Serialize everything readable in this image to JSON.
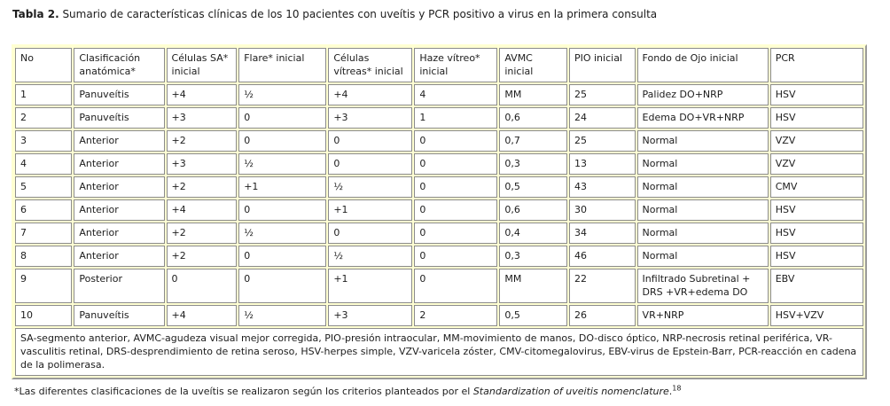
{
  "caption": {
    "label": "Tabla 2.",
    "text": " Sumario de características clínicas de los 10 pacientes con uveítis y PCR positivo a virus en la primera consulta"
  },
  "table": {
    "headers": [
      "No",
      "Clasificación anatómica*",
      "Células SA* inicial",
      "Flare* inicial",
      "Células vítreas* inicial",
      "Haze vítreo* inicial",
      "AVMC inicial",
      "PIO inicial",
      "Fondo de Ojo inicial",
      "PCR"
    ],
    "rows": [
      [
        "1",
        "Panuveítis",
        "+4",
        "½",
        "+4",
        "4",
        "MM",
        "25",
        "Palidez DO+NRP",
        "HSV"
      ],
      [
        "2",
        "Panuveítis",
        "+3",
        "0",
        "+3",
        "1",
        "0,6",
        "24",
        "Edema DO+VR+NRP",
        "HSV"
      ],
      [
        "3",
        "Anterior",
        "+2",
        "0",
        "0",
        "0",
        "0,7",
        "25",
        "Normal",
        "VZV"
      ],
      [
        "4",
        "Anterior",
        "+3",
        "½",
        "0",
        "0",
        "0,3",
        "13",
        "Normal",
        "VZV"
      ],
      [
        "5",
        "Anterior",
        "+2",
        "+1",
        "½",
        "0",
        "0,5",
        "43",
        "Normal",
        "CMV"
      ],
      [
        "6",
        "Anterior",
        "+4",
        "0",
        "+1",
        "0",
        "0,6",
        "30",
        "Normal",
        "HSV"
      ],
      [
        "7",
        "Anterior",
        "+2",
        "½",
        "0",
        "0",
        "0,4",
        "34",
        "Normal",
        "HSV"
      ],
      [
        "8",
        "Anterior",
        "+2",
        "0",
        "½",
        "0",
        "0,3",
        "46",
        "Normal",
        "HSV"
      ],
      [
        "9",
        "Posterior",
        "0",
        "0",
        "+1",
        "0",
        "MM",
        "22",
        "Infiltrado Subretinal + DRS +VR+edema DO",
        "EBV"
      ],
      [
        "10",
        "Panuveítis",
        "+4",
        "½",
        "+3",
        "2",
        "0,5",
        "26",
        "VR+NRP",
        "HSV+VZV"
      ]
    ],
    "footnote": "SA-segmento anterior, AVMC-agudeza visual mejor corregida, PIO-presión intraocular, MM-movimiento de manos, DO-disco óptico, NRP-necrosis retinal periférica, VR-vasculitis retinal, DRS-desprendimiento de retina seroso, HSV-herpes simple, VZV-varicela zóster, CMV-citomegalovirus, EBV-virus de Epstein-Barr, PCR-reacción en cadena de la polimerasa."
  },
  "after_note": {
    "prefix": "*Las diferentes clasificaciones de la uveítis se realizaron según los criterios planteados por el ",
    "italic": "Standardization of uveitis nomenclature",
    "period": ".",
    "superscript": "18"
  },
  "colors": {
    "cell_border": "#8b8b8b",
    "frame_yellow": "#ffffd2",
    "cell_bg": "#ffffff",
    "text": "#1c1c1c"
  }
}
